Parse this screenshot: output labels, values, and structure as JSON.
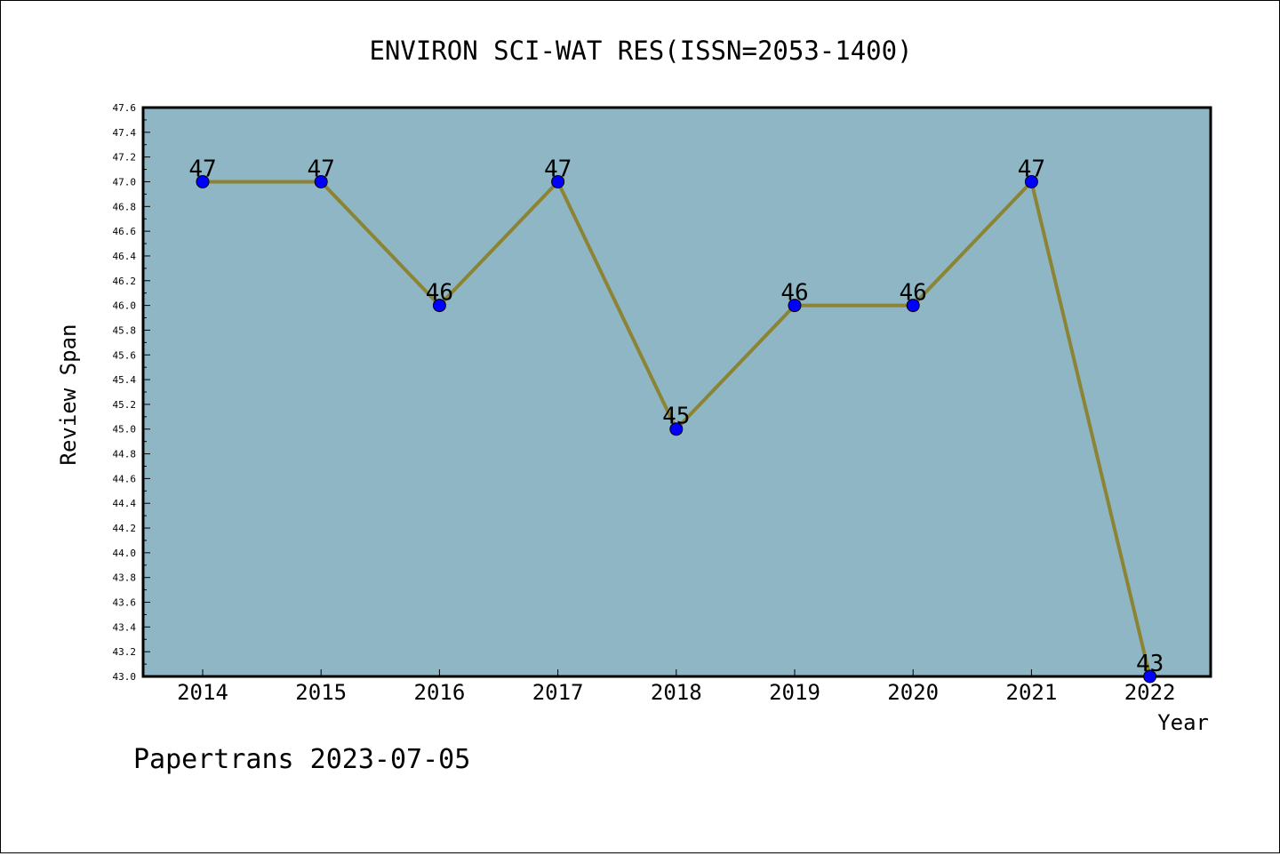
{
  "chart_data": {
    "type": "line",
    "title": "ENVIRON SCI-WAT RES(ISSN=2053-1400)",
    "xlabel": "Year",
    "ylabel": "Review Span",
    "categories": [
      "2014",
      "2015",
      "2016",
      "2017",
      "2018",
      "2019",
      "2020",
      "2021",
      "2022"
    ],
    "values": [
      47,
      47,
      46,
      47,
      45,
      46,
      46,
      47,
      43
    ],
    "ylim": [
      43.0,
      47.6
    ],
    "ytick_step": 0.2,
    "data_labels": true,
    "grid": false,
    "legend": "none",
    "colors": {
      "plot_background": "#8fb6c4",
      "line": "#8b8434",
      "marker": "#0000ff"
    }
  },
  "footer": {
    "text": "Papertrans 2023-07-05"
  }
}
